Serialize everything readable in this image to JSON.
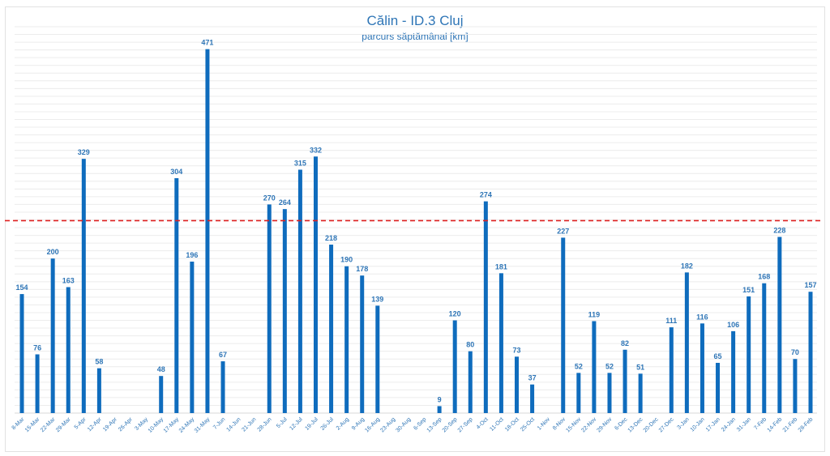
{
  "chart_data": {
    "type": "bar",
    "title": "Călin - ID.3 Cluj",
    "subtitle": "parcurs săptămânal [km]",
    "xlabel": "",
    "ylabel": "",
    "ylim": [
      0,
      500
    ],
    "grid": true,
    "bar_color": "#0f6cbd",
    "reference_line": {
      "value": 249,
      "color": "#e02020",
      "style": "dashed"
    },
    "categories": [
      "8-Mar",
      "15-Mar",
      "22-Mar",
      "29-Mar",
      "5-Apr",
      "12-Apr",
      "19-Apr",
      "26-Apr",
      "3-May",
      "10-May",
      "17-May",
      "24-May",
      "31-May",
      "7-Jun",
      "14-Jun",
      "21-Jun",
      "28-Jun",
      "5-Jul",
      "12-Jul",
      "19-Jul",
      "26-Jul",
      "2-Aug",
      "9-Aug",
      "16-Aug",
      "23-Aug",
      "30-Aug",
      "6-Sep",
      "13-Sep",
      "20-Sep",
      "27-Sep",
      "4-Oct",
      "11-Oct",
      "18-Oct",
      "25-Oct",
      "1-Nov",
      "8-Nov",
      "15-Nov",
      "22-Nov",
      "29-Nov",
      "6-Dec",
      "13-Dec",
      "20-Dec",
      "27-Dec",
      "3-Jan",
      "10-Jan",
      "17-Jan",
      "24-Jan",
      "31-Jan",
      "7-Feb",
      "14-Feb",
      "21-Feb",
      "28-Feb"
    ],
    "values": [
      154,
      76,
      200,
      163,
      329,
      58,
      0,
      0,
      0,
      48,
      304,
      196,
      471,
      67,
      0,
      0,
      270,
      264,
      315,
      332,
      218,
      190,
      178,
      139,
      0,
      0,
      0,
      9,
      120,
      80,
      274,
      181,
      73,
      37,
      0,
      227,
      52,
      119,
      52,
      82,
      51,
      0,
      111,
      182,
      116,
      65,
      106,
      151,
      168,
      228,
      70,
      157
    ]
  }
}
